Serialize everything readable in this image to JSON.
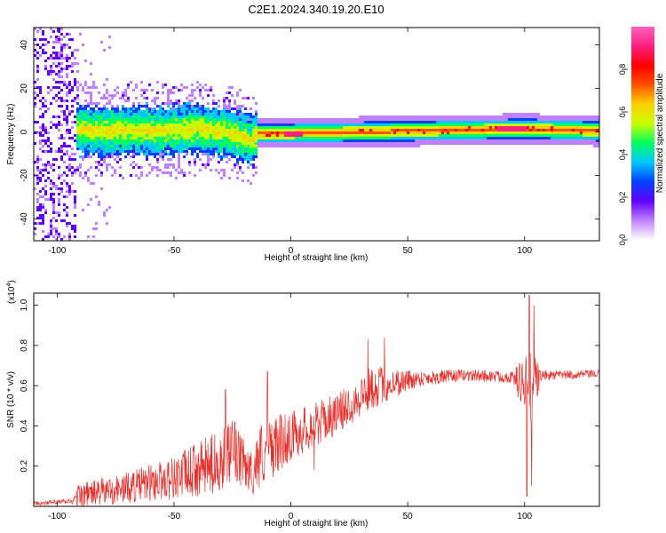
{
  "title": "C2E1.2024.340.19.20.E10",
  "chart_data": [
    {
      "type": "heatmap",
      "xlabel": "Height of straight line (km)",
      "ylabel": "Frequency (Hz)",
      "xlim": [
        -110,
        132
      ],
      "ylim": [
        -50,
        48
      ],
      "xticks": [
        -100,
        -50,
        0,
        50,
        100
      ],
      "yticks": [
        -40,
        -20,
        0,
        20,
        40
      ],
      "colorbar": {
        "label": "Normalized spectral amplitude",
        "range": [
          0,
          1
        ],
        "ticks": [
          "0.0",
          "0.2",
          "0.4",
          "0.6",
          "0.8"
        ],
        "colors": [
          "#ffffff",
          "#c080ff",
          "#6000ff",
          "#0040ff",
          "#00c8ff",
          "#00ff60",
          "#c8ff00",
          "#ffd000",
          "#ff5000",
          "#ff0000",
          "#ff2080",
          "#ff60c0"
        ]
      },
      "band_centre_hz": [
        {
          "x": -95,
          "y": 2
        },
        {
          "x": -80,
          "y": 1
        },
        {
          "x": -60,
          "y": 1
        },
        {
          "x": -40,
          "y": 2
        },
        {
          "x": -25,
          "y": 0
        },
        {
          "x": -17,
          "y": -4
        },
        {
          "x": -15,
          "y": 0
        },
        {
          "x": 0,
          "y": 0
        },
        {
          "x": 50,
          "y": 1
        },
        {
          "x": 100,
          "y": 2
        },
        {
          "x": 132,
          "y": 1
        }
      ]
    },
    {
      "type": "line",
      "xlabel": "Height of straight line (km)",
      "ylabel": "SNR (10 * v/v)",
      "y_multiplier": "(x10",
      "y_multiplier_exp": "4",
      "xlim": [
        -110,
        132
      ],
      "ylim": [
        0,
        1.06
      ],
      "xticks": [
        -100,
        -50,
        0,
        50,
        100
      ],
      "yticks": [
        "0.2",
        "0.4",
        "0.6",
        "0.8",
        "1.0"
      ],
      "series": [
        {
          "color": "#e8302c",
          "envelope": [
            {
              "x": -110,
              "base": 0.01,
              "spread": 0.02
            },
            {
              "x": -93,
              "base": 0.02,
              "spread": 0.03
            },
            {
              "x": -91,
              "base": 0.03,
              "spread": 0.12
            },
            {
              "x": -70,
              "base": 0.06,
              "spread": 0.16
            },
            {
              "x": -50,
              "base": 0.1,
              "spread": 0.22
            },
            {
              "x": -35,
              "base": 0.14,
              "spread": 0.3
            },
            {
              "x": -25,
              "base": 0.2,
              "spread": 0.32
            },
            {
              "x": -16,
              "base": 0.12,
              "spread": 0.2
            },
            {
              "x": -14,
              "base": 0.18,
              "spread": 0.35
            },
            {
              "x": 0,
              "base": 0.3,
              "spread": 0.25
            },
            {
              "x": 20,
              "base": 0.42,
              "spread": 0.2
            },
            {
              "x": 35,
              "base": 0.55,
              "spread": 0.22
            },
            {
              "x": 55,
              "base": 0.62,
              "spread": 0.08
            },
            {
              "x": 75,
              "base": 0.64,
              "spread": 0.06
            },
            {
              "x": 95,
              "base": 0.63,
              "spread": 0.06
            },
            {
              "x": 103,
              "base": 0.5,
              "spread": 0.45
            },
            {
              "x": 107,
              "base": 0.64,
              "spread": 0.05
            },
            {
              "x": 132,
              "base": 0.65,
              "spread": 0.04
            }
          ],
          "peaks": [
            {
              "x": -28,
              "y": 0.58
            },
            {
              "x": -24,
              "y": 0.42
            },
            {
              "x": -10,
              "y": 0.67
            },
            {
              "x": 33,
              "y": 0.83
            },
            {
              "x": 40,
              "y": 0.84
            },
            {
              "x": 102,
              "y": 1.05
            },
            {
              "x": 104,
              "y": 1.0
            },
            {
              "x": 101,
              "y": 0.05
            },
            {
              "x": 103,
              "y": 0.1
            },
            {
              "x": 10,
              "y": 0.18
            }
          ]
        }
      ]
    }
  ]
}
